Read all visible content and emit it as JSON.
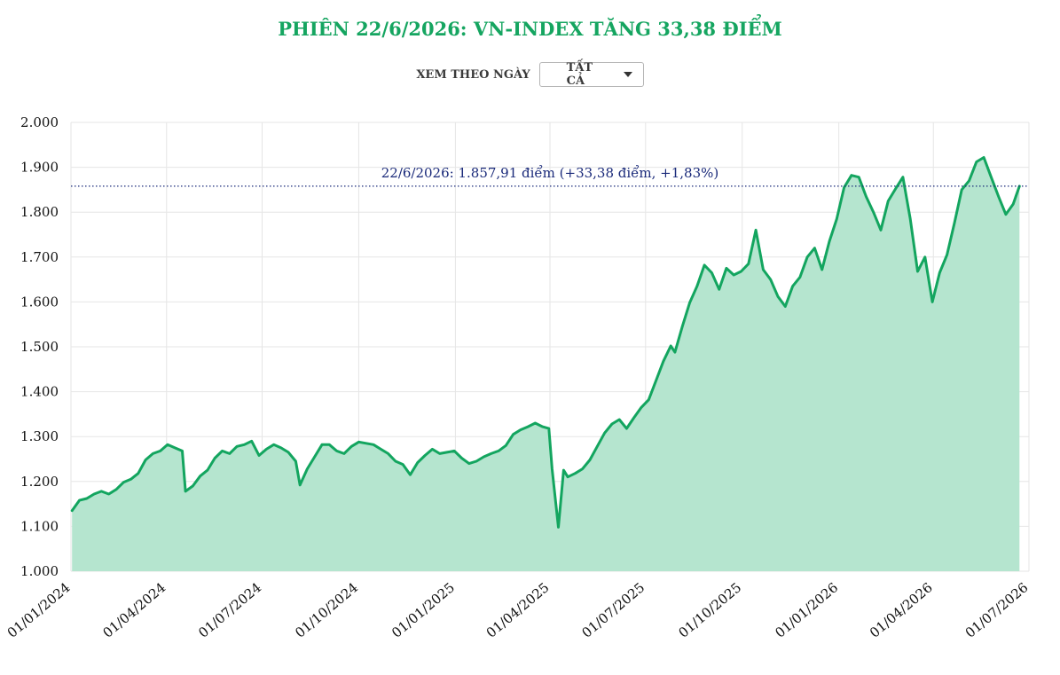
{
  "header": {
    "title": "PHIÊN 22/6/2026: VN-INDEX TĂNG 33,38 ĐIỂM"
  },
  "filter": {
    "label": "XEM THEO NGÀY",
    "selected": "TẤT CẢ"
  },
  "colors": {
    "accent": "#15a560",
    "line": "#13a55f",
    "area": "#b5e5cf",
    "annotation": "#1a2a7a",
    "grid": "#e6e6e6"
  },
  "chart_data": {
    "type": "area",
    "title": "PHIÊN 22/6/2026: VN-INDEX TĂNG 33,38 ĐIỂM",
    "xlabel": "",
    "ylabel": "",
    "ylim": [
      1000,
      2000
    ],
    "xlim": [
      "2024-01-01",
      "2026-07-01"
    ],
    "grid": true,
    "y_ticks": [
      {
        "value": 1000,
        "label": "1.000"
      },
      {
        "value": 1100,
        "label": "1.100"
      },
      {
        "value": 1200,
        "label": "1.200"
      },
      {
        "value": 1300,
        "label": "1.300"
      },
      {
        "value": 1400,
        "label": "1.400"
      },
      {
        "value": 1500,
        "label": "1.500"
      },
      {
        "value": 1600,
        "label": "1.600"
      },
      {
        "value": 1700,
        "label": "1.700"
      },
      {
        "value": 1800,
        "label": "1.800"
      },
      {
        "value": 1900,
        "label": "1.900"
      },
      {
        "value": 2000,
        "label": "2.000"
      }
    ],
    "x_ticks": [
      {
        "date": "2024-01-01",
        "label": "01/01/2024"
      },
      {
        "date": "2024-04-01",
        "label": "01/04/2024"
      },
      {
        "date": "2024-07-01",
        "label": "01/07/2024"
      },
      {
        "date": "2024-10-01",
        "label": "01/10/2024"
      },
      {
        "date": "2025-01-01",
        "label": "01/01/2025"
      },
      {
        "date": "2025-04-01",
        "label": "01/04/2025"
      },
      {
        "date": "2025-07-01",
        "label": "01/07/2025"
      },
      {
        "date": "2025-10-01",
        "label": "01/10/2025"
      },
      {
        "date": "2026-01-01",
        "label": "01/01/2026"
      },
      {
        "date": "2026-04-01",
        "label": "01/04/2026"
      },
      {
        "date": "2026-07-01",
        "label": "01/07/2026"
      }
    ],
    "reference_line": {
      "value": 1857.91,
      "style": "dotted"
    },
    "annotation": "22/6/2026: 1.857,91 điểm (+33,38 điểm, +1,83%)",
    "series": [
      {
        "points": [
          [
            "2024-01-02",
            1135
          ],
          [
            "2024-01-09",
            1158
          ],
          [
            "2024-01-16",
            1162
          ],
          [
            "2024-01-23",
            1172
          ],
          [
            "2024-01-30",
            1178
          ],
          [
            "2024-02-06",
            1172
          ],
          [
            "2024-02-13",
            1182
          ],
          [
            "2024-02-20",
            1198
          ],
          [
            "2024-02-27",
            1205
          ],
          [
            "2024-03-05",
            1218
          ],
          [
            "2024-03-12",
            1248
          ],
          [
            "2024-03-19",
            1262
          ],
          [
            "2024-03-26",
            1268
          ],
          [
            "2024-04-02",
            1282
          ],
          [
            "2024-04-09",
            1275
          ],
          [
            "2024-04-16",
            1268
          ],
          [
            "2024-04-19",
            1178
          ],
          [
            "2024-04-26",
            1190
          ],
          [
            "2024-05-03",
            1212
          ],
          [
            "2024-05-10",
            1225
          ],
          [
            "2024-05-17",
            1252
          ],
          [
            "2024-05-24",
            1268
          ],
          [
            "2024-05-31",
            1262
          ],
          [
            "2024-06-07",
            1278
          ],
          [
            "2024-06-14",
            1282
          ],
          [
            "2024-06-21",
            1290
          ],
          [
            "2024-06-28",
            1258
          ],
          [
            "2024-07-05",
            1272
          ],
          [
            "2024-07-12",
            1282
          ],
          [
            "2024-07-19",
            1275
          ],
          [
            "2024-07-26",
            1265
          ],
          [
            "2024-08-02",
            1245
          ],
          [
            "2024-08-06",
            1192
          ],
          [
            "2024-08-13",
            1228
          ],
          [
            "2024-08-20",
            1255
          ],
          [
            "2024-08-27",
            1282
          ],
          [
            "2024-09-03",
            1282
          ],
          [
            "2024-09-10",
            1268
          ],
          [
            "2024-09-17",
            1262
          ],
          [
            "2024-09-24",
            1278
          ],
          [
            "2024-10-01",
            1288
          ],
          [
            "2024-10-08",
            1285
          ],
          [
            "2024-10-15",
            1282
          ],
          [
            "2024-10-22",
            1272
          ],
          [
            "2024-10-29",
            1262
          ],
          [
            "2024-11-05",
            1245
          ],
          [
            "2024-11-12",
            1238
          ],
          [
            "2024-11-19",
            1215
          ],
          [
            "2024-11-26",
            1242
          ],
          [
            "2024-12-03",
            1258
          ],
          [
            "2024-12-10",
            1272
          ],
          [
            "2024-12-17",
            1262
          ],
          [
            "2024-12-24",
            1265
          ],
          [
            "2024-12-31",
            1268
          ],
          [
            "2025-01-07",
            1252
          ],
          [
            "2025-01-14",
            1240
          ],
          [
            "2025-01-21",
            1245
          ],
          [
            "2025-01-28",
            1255
          ],
          [
            "2025-02-04",
            1262
          ],
          [
            "2025-02-11",
            1268
          ],
          [
            "2025-02-18",
            1280
          ],
          [
            "2025-02-25",
            1305
          ],
          [
            "2025-03-04",
            1315
          ],
          [
            "2025-03-11",
            1322
          ],
          [
            "2025-03-18",
            1330
          ],
          [
            "2025-03-25",
            1322
          ],
          [
            "2025-03-31",
            1318
          ],
          [
            "2025-04-03",
            1228
          ],
          [
            "2025-04-09",
            1098
          ],
          [
            "2025-04-14",
            1225
          ],
          [
            "2025-04-18",
            1210
          ],
          [
            "2025-04-25",
            1218
          ],
          [
            "2025-05-02",
            1228
          ],
          [
            "2025-05-09",
            1248
          ],
          [
            "2025-05-16",
            1278
          ],
          [
            "2025-05-23",
            1308
          ],
          [
            "2025-05-30",
            1328
          ],
          [
            "2025-06-06",
            1338
          ],
          [
            "2025-06-13",
            1318
          ],
          [
            "2025-06-20",
            1342
          ],
          [
            "2025-06-27",
            1365
          ],
          [
            "2025-07-04",
            1382
          ],
          [
            "2025-07-11",
            1425
          ],
          [
            "2025-07-18",
            1468
          ],
          [
            "2025-07-25",
            1502
          ],
          [
            "2025-07-29",
            1488
          ],
          [
            "2025-08-05",
            1545
          ],
          [
            "2025-08-12",
            1598
          ],
          [
            "2025-08-19",
            1635
          ],
          [
            "2025-08-26",
            1682
          ],
          [
            "2025-09-02",
            1665
          ],
          [
            "2025-09-09",
            1628
          ],
          [
            "2025-09-16",
            1675
          ],
          [
            "2025-09-23",
            1660
          ],
          [
            "2025-09-30",
            1668
          ],
          [
            "2025-10-07",
            1685
          ],
          [
            "2025-10-14",
            1760
          ],
          [
            "2025-10-21",
            1672
          ],
          [
            "2025-10-28",
            1650
          ],
          [
            "2025-11-04",
            1612
          ],
          [
            "2025-11-11",
            1590
          ],
          [
            "2025-11-18",
            1635
          ],
          [
            "2025-11-25",
            1655
          ],
          [
            "2025-12-02",
            1700
          ],
          [
            "2025-12-09",
            1720
          ],
          [
            "2025-12-16",
            1672
          ],
          [
            "2025-12-23",
            1735
          ],
          [
            "2025-12-30",
            1785
          ],
          [
            "2026-01-06",
            1855
          ],
          [
            "2026-01-13",
            1882
          ],
          [
            "2026-01-20",
            1878
          ],
          [
            "2026-01-27",
            1835
          ],
          [
            "2026-02-03",
            1800
          ],
          [
            "2026-02-10",
            1760
          ],
          [
            "2026-02-17",
            1825
          ],
          [
            "2026-02-24",
            1852
          ],
          [
            "2026-03-03",
            1878
          ],
          [
            "2026-03-10",
            1785
          ],
          [
            "2026-03-17",
            1668
          ],
          [
            "2026-03-24",
            1700
          ],
          [
            "2026-03-31",
            1600
          ],
          [
            "2026-04-07",
            1665
          ],
          [
            "2026-04-14",
            1705
          ],
          [
            "2026-04-21",
            1775
          ],
          [
            "2026-04-28",
            1850
          ],
          [
            "2026-05-05",
            1870
          ],
          [
            "2026-05-12",
            1912
          ],
          [
            "2026-05-19",
            1922
          ],
          [
            "2026-05-26",
            1878
          ],
          [
            "2026-06-02",
            1835
          ],
          [
            "2026-06-09",
            1795
          ],
          [
            "2026-06-16",
            1818
          ],
          [
            "2026-06-22",
            1857.91
          ]
        ]
      }
    ]
  }
}
